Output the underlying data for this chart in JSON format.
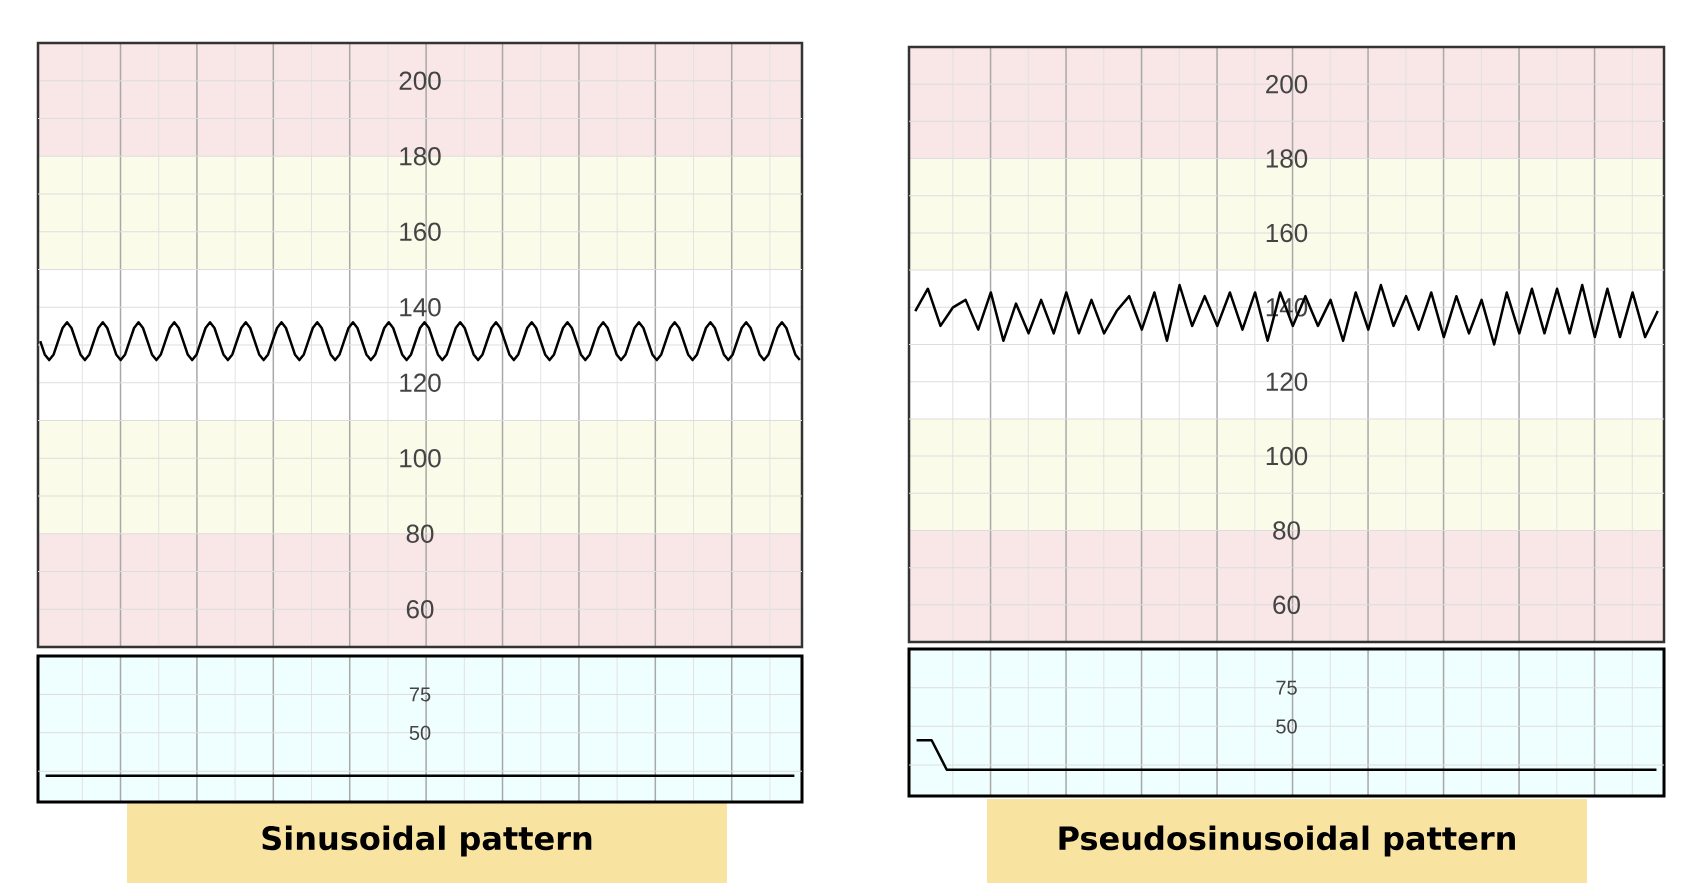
{
  "chart_data": [
    {
      "type": "line",
      "title": "Sinusoidal pattern",
      "color": "#000000",
      "ylim": [
        50,
        210
      ],
      "grid": true,
      "yticks": [
        60,
        {
          "value": 70,
          "label": null
        },
        80,
        {
          "value": 90,
          "label": null
        },
        100,
        {
          "value": 110,
          "label": null
        },
        120,
        {
          "value": 130,
          "label": null
        },
        140,
        {
          "value": 150,
          "label": null
        },
        160,
        {
          "value": 170,
          "label": null
        },
        180,
        {
          "value": 190,
          "label": null
        },
        200
      ],
      "bands": [
        {
          "axis": "y",
          "from": 180,
          "to": 210,
          "color": "#f9e6e6"
        },
        {
          "axis": "y",
          "from": 150,
          "to": 180,
          "color": "#fbfbe9"
        },
        {
          "axis": "y",
          "from": 80,
          "to": 110,
          "color": "#fbfbe9"
        },
        {
          "axis": "y",
          "from": 50,
          "to": 80,
          "color": "#f9e6e6"
        }
      ],
      "categories": [
        null,
        null,
        null,
        null,
        null,
        null,
        null,
        null,
        null,
        null,
        null,
        null,
        null,
        null,
        null,
        null,
        null,
        null,
        null,
        null,
        null,
        null,
        null,
        null,
        null,
        null,
        null,
        null,
        null,
        null,
        null,
        null,
        null,
        null,
        null,
        null,
        null,
        null,
        null,
        null,
        null,
        null,
        null,
        null,
        null,
        null,
        null,
        null,
        null,
        null,
        null,
        null,
        null,
        null,
        null,
        null,
        null,
        null,
        null,
        null,
        null,
        null,
        null,
        null,
        null,
        null,
        null,
        null,
        null,
        null,
        null,
        null,
        null,
        null,
        null,
        null,
        null,
        null,
        null,
        null,
        null,
        null,
        null,
        null,
        null,
        null,
        null,
        null,
        null,
        null,
        null,
        null,
        null,
        null,
        null,
        null,
        null,
        null,
        null,
        null,
        null,
        null,
        null,
        null,
        null,
        null,
        null,
        null,
        null,
        null,
        null,
        null,
        null,
        null,
        null,
        null,
        null,
        null,
        null,
        null,
        null,
        null,
        null,
        null,
        null,
        null,
        null,
        null,
        null,
        null,
        null,
        null,
        null,
        null,
        null,
        null,
        null,
        null,
        null,
        null,
        null,
        null,
        null,
        null,
        null,
        null,
        null,
        null,
        null,
        null,
        null,
        null,
        null,
        null,
        null,
        null,
        null,
        null,
        null,
        null,
        null,
        null,
        null,
        null,
        null,
        null,
        null,
        null,
        null,
        null,
        null
      ],
      "values": [
        131,
        127.5,
        126,
        127.5,
        131,
        134.5,
        136,
        134.5,
        131,
        127.5,
        126,
        127.5,
        131,
        134.5,
        136,
        134.5,
        131,
        127.5,
        126,
        127.5,
        131,
        134.5,
        136,
        134.5,
        131,
        127.5,
        126,
        127.5,
        131,
        134.5,
        136,
        134.5,
        131,
        127.5,
        126,
        127.5,
        131,
        134.5,
        136,
        134.5,
        131,
        127.5,
        126,
        127.5,
        131,
        134.5,
        136,
        134.5,
        131,
        127.5,
        126,
        127.5,
        131,
        134.5,
        136,
        134.5,
        131,
        127.5,
        126,
        127.5,
        131,
        134.5,
        136,
        134.5,
        131,
        127.5,
        126,
        127.5,
        131,
        134.5,
        136,
        134.5,
        131,
        127.5,
        126,
        127.5,
        131,
        134.5,
        136,
        134.5,
        131,
        127.5,
        126,
        127.5,
        131,
        134.5,
        136,
        134.5,
        131,
        127.5,
        126,
        127.5,
        131,
        134.5,
        136,
        134.5,
        131,
        127.5,
        126,
        127.5,
        131,
        134.5,
        136,
        134.5,
        131,
        127.5,
        126,
        127.5,
        131,
        134.5,
        136,
        134.5,
        131,
        127.5,
        126,
        127.5,
        131,
        134.5,
        136,
        134.5,
        131,
        127.5,
        126,
        127.5,
        131,
        134.5,
        136,
        134.5,
        131,
        127.5,
        126,
        127.5,
        131,
        134.5,
        136,
        134.5,
        131,
        127.5,
        126,
        127.5,
        131,
        134.5,
        136,
        134.5,
        131,
        127.5,
        126,
        127.5,
        131,
        134.5,
        136,
        134.5,
        131,
        127.5,
        126,
        127.5,
        131,
        134.5,
        136,
        134.5,
        131,
        127.5,
        126,
        127.5,
        131,
        134.5,
        136,
        134.5,
        131,
        127.5,
        126
      ]
    },
    {
      "type": "line",
      "title": "Pseudosinusoidal pattern",
      "color": "#000000",
      "ylim": [
        50,
        210
      ],
      "grid": true,
      "yticks": [
        60,
        {
          "value": 70,
          "label": null
        },
        80,
        {
          "value": 90,
          "label": null
        },
        100,
        {
          "value": 110,
          "label": null
        },
        120,
        {
          "value": 130,
          "label": null
        },
        140,
        {
          "value": 150,
          "label": null
        },
        160,
        {
          "value": 170,
          "label": null
        },
        180,
        {
          "value": 190,
          "label": null
        },
        200
      ],
      "bands": [
        {
          "axis": "y",
          "from": 180,
          "to": 210,
          "color": "#f9e6e6"
        },
        {
          "axis": "y",
          "from": 150,
          "to": 180,
          "color": "#fbfbe9"
        },
        {
          "axis": "y",
          "from": 80,
          "to": 110,
          "color": "#fbfbe9"
        },
        {
          "axis": "y",
          "from": 50,
          "to": 80,
          "color": "#f9e6e6"
        }
      ],
      "categories": [
        null,
        null,
        null,
        null,
        null,
        null,
        null,
        null,
        null,
        null,
        null,
        null,
        null,
        null,
        null,
        null,
        null,
        null,
        null,
        null,
        null,
        null,
        null,
        null,
        null,
        null,
        null,
        null,
        null,
        null,
        null,
        null,
        null,
        null,
        null,
        null,
        null,
        null,
        null,
        null,
        null,
        null,
        null,
        null,
        null,
        null,
        null,
        null,
        null,
        null,
        null,
        null,
        null,
        null,
        null,
        null,
        null,
        null,
        null,
        null
      ],
      "values": [
        139,
        145,
        135,
        140,
        142,
        134,
        144,
        131,
        141,
        133,
        142,
        133,
        144,
        133,
        142,
        133,
        139,
        143,
        134,
        144,
        131,
        146,
        135,
        143,
        135,
        144,
        134,
        144,
        131,
        144,
        135,
        143,
        135,
        142,
        131,
        144,
        134,
        146,
        135,
        143,
        134,
        144,
        132,
        143,
        133,
        142,
        130,
        144,
        133,
        145,
        133,
        145,
        133,
        146,
        132,
        145,
        132,
        144,
        132,
        139
      ]
    },
    {
      "type": "line",
      "color": "#000000",
      "ylim": [
        5,
        100
      ],
      "grid": true,
      "yticks": [
        {
          "value": 25,
          "label": null
        },
        50,
        75
      ],
      "categories": [
        null,
        null,
        null,
        null,
        null,
        null,
        null,
        null,
        null,
        null,
        null,
        null,
        null,
        null,
        null,
        null,
        null,
        null,
        null,
        null,
        null,
        null,
        null,
        null,
        null,
        null,
        null,
        null,
        null,
        null,
        null,
        null,
        null,
        null,
        null,
        null,
        null,
        null,
        null,
        null,
        null,
        null,
        null,
        null,
        null,
        null,
        null,
        null,
        null,
        null
      ],
      "values": [
        22,
        22,
        22,
        22,
        22,
        22,
        22,
        22,
        22,
        22,
        22,
        22,
        22,
        22,
        22,
        22,
        22,
        22,
        22,
        22,
        22,
        22,
        22,
        22,
        22,
        22,
        22,
        22,
        22,
        22,
        22,
        22,
        22,
        22,
        22,
        22,
        22,
        22,
        22,
        22,
        22,
        22,
        22,
        22,
        22,
        22,
        22,
        22,
        22,
        22
      ]
    },
    {
      "type": "line",
      "color": "#000000",
      "ylim": [
        5,
        100
      ],
      "grid": true,
      "yticks": [
        {
          "value": 25,
          "label": null
        },
        50,
        75
      ],
      "categories": [
        null,
        null,
        null,
        null,
        null,
        null,
        null,
        null,
        null,
        null,
        null,
        null,
        null,
        null,
        null,
        null,
        null,
        null,
        null,
        null,
        null,
        null,
        null,
        null,
        null,
        null,
        null,
        null,
        null,
        null,
        null,
        null,
        null,
        null,
        null,
        null,
        null,
        null,
        null,
        null,
        null,
        null,
        null,
        null,
        null,
        null,
        null,
        null,
        null,
        null
      ],
      "values": [
        41,
        41,
        22,
        22,
        22,
        22,
        22,
        22,
        22,
        22,
        22,
        22,
        22,
        22,
        22,
        22,
        22,
        22,
        22,
        22,
        22,
        22,
        22,
        22,
        22,
        22,
        22,
        22,
        22,
        22,
        22,
        22,
        22,
        22,
        22,
        22,
        22,
        22,
        22,
        22,
        22,
        22,
        22,
        22,
        22,
        22,
        22,
        22,
        22,
        22
      ]
    }
  ]
}
